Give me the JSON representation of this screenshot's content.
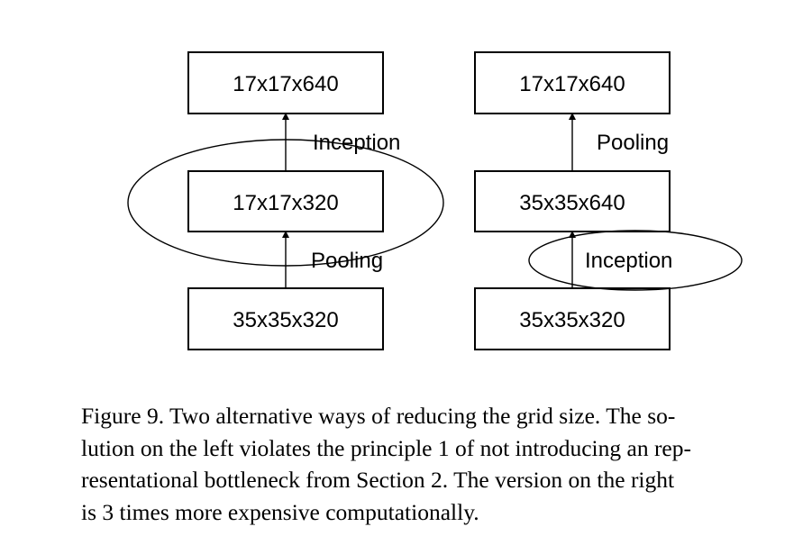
{
  "diagram": {
    "left": {
      "top_box": "17x17x640",
      "middle_box": "17x17x320",
      "bottom_box": "35x35x320",
      "upper_edge_label": "Inception",
      "lower_edge_label": "Pooling"
    },
    "right": {
      "top_box": "17x17x640",
      "middle_box": "35x35x640",
      "bottom_box": "35x35x320",
      "upper_edge_label": "Pooling",
      "lower_edge_label": "Inception"
    }
  },
  "caption": {
    "lines": [
      "Figure 9. Two alternative ways of reducing the grid size. The so-",
      "lution on the left violates the principle 1 of not introducing an rep-",
      "resentational bottleneck from Section 2. The version on the right",
      "is 3 times more expensive computationally."
    ]
  }
}
